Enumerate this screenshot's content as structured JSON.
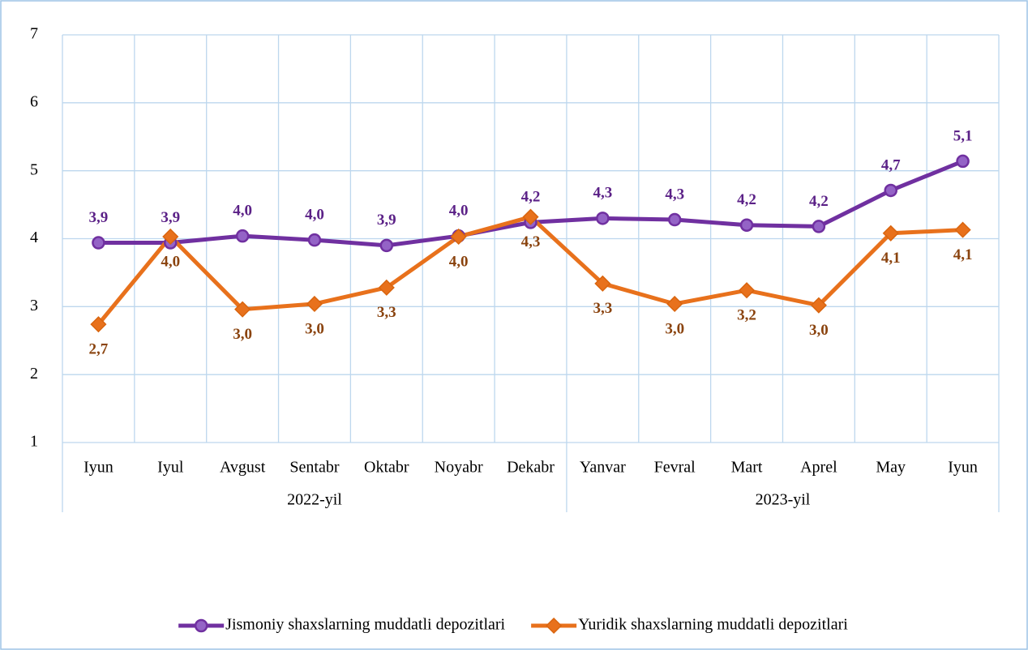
{
  "chart_data": {
    "type": "line",
    "categories": [
      "Iyun",
      "Iyul",
      "Avgust",
      "Sentabr",
      "Oktabr",
      "Noyabr",
      "Dekabr",
      "Yanvar",
      "Fevral",
      "Mart",
      "Aprel",
      "May",
      "Iyun"
    ],
    "groups": [
      {
        "label": "2022-yil",
        "count": 7
      },
      {
        "label": "2023-yil",
        "count": 6
      }
    ],
    "series": [
      {
        "name": "Jismoniy shaxslarning muddatli depozitlari",
        "color": "#7030a0",
        "marker": "circle",
        "values": [
          3.94,
          3.94,
          4.04,
          3.98,
          3.9,
          4.04,
          4.24,
          4.3,
          4.28,
          4.2,
          4.18,
          4.71,
          5.14
        ],
        "value_labels": [
          "3,9",
          "3,9",
          "4,0",
          "4,0",
          "3,9",
          "4,0",
          "4,2",
          "4,3",
          "4,3",
          "4,2",
          "4,2",
          "4,7",
          "5,1"
        ]
      },
      {
        "name": "Yuridik shaxslarning muddatli depozitlari",
        "color": "#e8711c",
        "marker": "diamond",
        "values": [
          2.74,
          4.03,
          2.96,
          3.04,
          3.28,
          4.03,
          4.32,
          3.34,
          3.04,
          3.24,
          3.02,
          4.08,
          4.13
        ],
        "value_labels": [
          "2,7",
          "4,0",
          "3,0",
          "3,0",
          "3,3",
          "4,0",
          "4,3",
          "3,3",
          "3,0",
          "3,2",
          "3,0",
          "4,1",
          "4,1"
        ]
      }
    ],
    "ylim": [
      1,
      7
    ],
    "yticks": [
      1,
      2,
      3,
      4,
      5,
      6,
      7
    ],
    "grid": true,
    "legend": "bottom"
  }
}
